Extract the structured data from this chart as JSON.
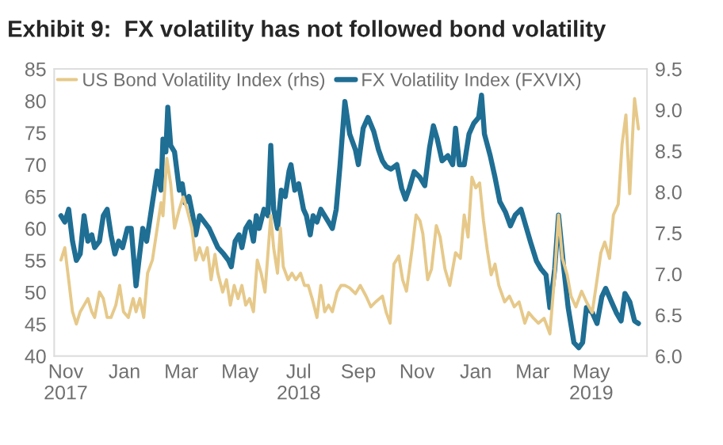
{
  "chart_data": {
    "type": "line",
    "title": "Exhibit 9:  FX volatility has not followed bond volatility",
    "series": [
      {
        "name": "US Bond Volatility Index (rhs)",
        "color": "#e6c98a",
        "axis": "y2",
        "x": [
          "2017-10-27",
          "2017-10-31",
          "2017-11-04",
          "2017-11-08",
          "2017-11-12",
          "2017-11-16",
          "2017-11-20",
          "2017-11-24",
          "2017-11-28",
          "2017-12-01",
          "2017-12-06",
          "2017-12-10",
          "2017-12-14",
          "2017-12-18",
          "2017-12-23",
          "2017-12-27",
          "2017-12-31",
          "2018-01-05",
          "2018-01-10",
          "2018-01-13",
          "2018-01-17",
          "2018-01-21",
          "2018-01-25",
          "2018-01-30",
          "2018-02-03",
          "2018-02-08",
          "2018-02-10",
          "2018-02-14",
          "2018-02-18",
          "2018-02-22",
          "2018-02-27",
          "2018-03-03",
          "2018-03-07",
          "2018-03-12",
          "2018-03-16",
          "2018-03-20",
          "2018-03-24",
          "2018-03-28",
          "2018-04-01",
          "2018-04-05",
          "2018-04-08",
          "2018-04-13",
          "2018-04-17",
          "2018-04-21",
          "2018-04-25",
          "2018-04-29",
          "2018-05-03",
          "2018-05-07",
          "2018-05-11",
          "2018-05-15",
          "2018-05-19",
          "2018-05-23",
          "2018-05-27",
          "2018-05-30",
          "2018-06-02",
          "2018-06-05",
          "2018-06-09",
          "2018-06-12",
          "2018-06-15",
          "2018-06-20",
          "2018-06-24",
          "2018-06-28",
          "2018-07-03",
          "2018-07-07",
          "2018-07-11",
          "2018-07-15",
          "2018-07-20",
          "2018-07-24",
          "2018-07-28",
          "2018-08-01",
          "2018-08-05",
          "2018-08-10",
          "2018-08-14",
          "2018-08-18",
          "2018-08-23",
          "2018-08-29",
          "2018-09-03",
          "2018-09-09",
          "2018-09-14",
          "2018-09-19",
          "2018-09-26",
          "2018-09-30",
          "2018-10-04",
          "2018-10-08",
          "2018-10-13",
          "2018-10-17",
          "2018-10-21",
          "2018-10-27",
          "2018-10-31",
          "2018-11-04",
          "2018-11-07",
          "2018-11-12",
          "2018-11-16",
          "2018-11-21",
          "2018-11-25",
          "2018-11-30",
          "2018-12-05",
          "2018-12-11",
          "2018-12-16",
          "2018-12-20",
          "2018-12-24",
          "2018-12-28",
          "2019-01-01",
          "2019-01-05",
          "2019-01-09",
          "2019-01-13",
          "2019-01-17",
          "2019-01-21",
          "2019-01-25",
          "2019-01-31",
          "2019-02-05",
          "2019-02-10",
          "2019-02-15",
          "2019-02-21",
          "2019-02-25",
          "2019-03-02",
          "2019-03-07",
          "2019-03-13",
          "2019-03-19",
          "2019-03-24",
          "2019-03-28",
          "2019-04-01",
          "2019-04-06",
          "2019-04-10",
          "2019-04-15",
          "2019-04-21",
          "2019-04-26",
          "2019-05-02",
          "2019-05-07",
          "2019-05-11",
          "2019-05-15",
          "2019-05-20",
          "2019-05-24",
          "2019-05-29",
          "2019-06-02",
          "2019-06-06",
          "2019-06-10",
          "2019-06-13",
          "2019-06-15",
          "2019-06-19"
        ],
        "values": [
          7.17,
          7.32,
          6.93,
          6.54,
          6.39,
          6.54,
          6.62,
          6.7,
          6.54,
          6.47,
          6.78,
          6.7,
          6.47,
          6.47,
          6.62,
          6.86,
          6.54,
          6.47,
          6.7,
          6.54,
          6.7,
          6.47,
          7.01,
          7.17,
          7.48,
          7.87,
          7.71,
          8.41,
          8.1,
          7.56,
          7.79,
          7.94,
          7.79,
          7.56,
          7.17,
          7.32,
          7.17,
          7.32,
          6.93,
          7.24,
          7.01,
          6.78,
          6.93,
          6.62,
          6.86,
          6.7,
          6.86,
          6.62,
          6.7,
          6.54,
          7.17,
          7.01,
          6.78,
          7.24,
          7.71,
          7.32,
          7.01,
          7.56,
          7.09,
          6.93,
          7.01,
          6.93,
          7.01,
          6.86,
          6.86,
          6.7,
          6.47,
          6.86,
          6.54,
          6.62,
          6.54,
          6.78,
          6.86,
          6.86,
          6.83,
          6.76,
          6.86,
          6.73,
          6.6,
          6.66,
          6.73,
          6.53,
          6.4,
          7.12,
          7.22,
          6.93,
          6.79,
          7.32,
          7.72,
          7.65,
          7.49,
          6.93,
          7.06,
          7.59,
          7.45,
          7.06,
          6.86,
          7.26,
          7.19,
          7.72,
          7.45,
          8.18,
          8.05,
          8.11,
          7.65,
          7.29,
          6.99,
          7.12,
          6.86,
          6.66,
          6.73,
          6.6,
          6.66,
          6.4,
          6.53,
          6.46,
          6.4,
          6.46,
          6.27,
          6.99,
          7.72,
          7.19,
          6.99,
          6.73,
          6.6,
          6.79,
          6.66,
          6.53,
          6.93,
          7.26,
          7.39,
          7.19,
          7.72,
          7.85,
          8.58,
          8.94,
          7.98,
          8.71,
          9.14,
          8.77
        ]
      },
      {
        "name": "FX Volatility Index (FXVIX)",
        "color": "#1f6e94",
        "x": [
          "2017-10-27",
          "2017-10-31",
          "2017-11-04",
          "2017-11-08",
          "2017-11-12",
          "2017-11-16",
          "2017-11-20",
          "2017-11-24",
          "2017-11-28",
          "2017-12-01",
          "2017-12-06",
          "2017-12-10",
          "2017-12-14",
          "2017-12-18",
          "2017-12-22",
          "2017-12-26",
          "2017-12-30",
          "2018-01-04",
          "2018-01-08",
          "2018-01-13",
          "2018-01-16",
          "2018-01-20",
          "2018-01-24",
          "2018-01-28",
          "2018-02-01",
          "2018-02-04",
          "2018-02-08",
          "2018-02-10",
          "2018-02-13",
          "2018-02-15",
          "2018-02-18",
          "2018-02-22",
          "2018-02-27",
          "2018-03-02",
          "2018-03-05",
          "2018-03-09",
          "2018-03-13",
          "2018-03-16",
          "2018-03-20",
          "2018-03-25",
          "2018-03-30",
          "2018-04-05",
          "2018-04-08",
          "2018-04-14",
          "2018-04-19",
          "2018-04-22",
          "2018-04-26",
          "2018-04-30",
          "2018-05-03",
          "2018-05-07",
          "2018-05-11",
          "2018-05-15",
          "2018-05-18",
          "2018-05-21",
          "2018-05-26",
          "2018-05-30",
          "2018-06-02",
          "2018-06-05",
          "2018-06-09",
          "2018-06-13",
          "2018-06-17",
          "2018-06-21",
          "2018-06-23",
          "2018-06-27",
          "2018-07-01",
          "2018-07-06",
          "2018-07-09",
          "2018-07-13",
          "2018-07-16",
          "2018-07-20",
          "2018-07-24",
          "2018-07-28",
          "2018-08-01",
          "2018-08-05",
          "2018-08-09",
          "2018-08-13",
          "2018-08-18",
          "2018-08-23",
          "2018-08-29",
          "2018-09-01",
          "2018-09-06",
          "2018-09-11",
          "2018-09-17",
          "2018-09-22",
          "2018-09-26",
          "2018-09-30",
          "2018-10-05",
          "2018-10-11",
          "2018-10-16",
          "2018-10-20",
          "2018-10-24",
          "2018-10-29",
          "2018-11-04",
          "2018-11-09",
          "2018-11-14",
          "2018-11-18",
          "2018-11-22",
          "2018-11-27",
          "2018-12-03",
          "2018-12-08",
          "2018-12-11",
          "2018-12-15",
          "2018-12-20",
          "2018-12-25",
          "2018-12-30",
          "2019-01-04",
          "2019-01-07",
          "2019-01-10",
          "2019-01-16",
          "2019-01-21",
          "2019-01-26",
          "2019-02-01",
          "2019-02-06",
          "2019-02-11",
          "2019-02-17",
          "2019-02-22",
          "2019-02-27",
          "2019-03-05",
          "2019-03-10",
          "2019-03-15",
          "2019-03-19",
          "2019-03-24",
          "2019-03-28",
          "2019-04-02",
          "2019-04-07",
          "2019-04-13",
          "2019-04-18",
          "2019-04-22",
          "2019-04-26",
          "2019-05-02",
          "2019-05-07",
          "2019-05-12",
          "2019-05-16",
          "2019-05-22",
          "2019-05-27",
          "2019-06-01",
          "2019-06-05",
          "2019-06-10",
          "2019-06-15",
          "2019-06-19"
        ],
        "values": [
          62,
          61,
          63,
          58,
          55,
          56,
          62,
          58,
          59,
          57,
          58,
          62,
          63,
          59,
          56,
          58,
          57,
          60,
          60,
          51,
          55,
          60,
          58,
          62,
          66,
          69,
          66,
          74,
          72,
          79,
          73,
          72,
          66,
          67,
          64,
          65,
          62,
          59,
          62,
          61,
          60,
          58,
          57,
          56,
          55,
          54,
          58,
          59,
          57,
          60,
          61,
          58,
          62,
          60,
          63,
          62,
          73,
          63,
          60,
          66,
          65,
          69,
          70,
          66,
          67,
          63,
          62,
          59,
          62,
          61,
          63,
          62,
          61,
          60,
          63,
          70,
          79.9,
          74.8,
          72.3,
          70,
          75.7,
          77.4,
          75.2,
          72.3,
          70.6,
          69.7,
          69.3,
          70,
          66.3,
          64.6,
          66.3,
          68.9,
          68,
          66.7,
          72.7,
          76.1,
          74,
          70.6,
          71.4,
          70,
          75.7,
          70,
          70,
          74.8,
          76.5,
          77.4,
          80.9,
          74.8,
          71.4,
          68,
          64.2,
          62.5,
          60.4,
          62.1,
          63,
          60.4,
          57.8,
          54.9,
          53.6,
          52.7,
          47.6,
          53.6,
          62.1,
          54.4,
          47.6,
          42.1,
          41.3,
          42.1,
          47.6,
          46.8,
          45.1,
          49.3,
          50.6,
          48.5,
          46.8,
          45.5,
          49.8,
          48.5,
          45.5,
          45.1
        ]
      }
    ],
    "xlim": [
      "2017-10-20",
      "2019-06-28"
    ],
    "xticks": [
      {
        "value": "2017-11-01",
        "label": "Nov\n2017"
      },
      {
        "value": "2018-01-01",
        "label": "Jan"
      },
      {
        "value": "2018-03-01",
        "label": "Mar"
      },
      {
        "value": "2018-05-01",
        "label": "May"
      },
      {
        "value": "2018-07-01",
        "label": "Jul\n2018"
      },
      {
        "value": "2018-09-01",
        "label": "Sep"
      },
      {
        "value": "2018-11-01",
        "label": "Nov"
      },
      {
        "value": "2019-01-01",
        "label": "Jan"
      },
      {
        "value": "2019-03-01",
        "label": "Mar"
      },
      {
        "value": "2019-05-01",
        "label": "May\n2019"
      }
    ],
    "ylim": [
      40,
      85
    ],
    "yticks": [
      40,
      45,
      50,
      55,
      60,
      65,
      70,
      75,
      80,
      85
    ],
    "y2lim": [
      6.0,
      9.5
    ],
    "y2ticks": [
      {
        "value": 6.0,
        "label": "6.0"
      },
      {
        "value": 6.5,
        "label": "6.5"
      },
      {
        "value": 7.0,
        "label": "7.0"
      },
      {
        "value": 7.5,
        "label": "7.5"
      },
      {
        "value": 8.0,
        "label": "8.0"
      },
      {
        "value": 8.5,
        "label": "8.5"
      },
      {
        "value": 9.0,
        "label": "9.0"
      },
      {
        "value": 9.5,
        "label": "9.5"
      }
    ],
    "grid": false,
    "legend": "top left",
    "line_style": "solid"
  }
}
